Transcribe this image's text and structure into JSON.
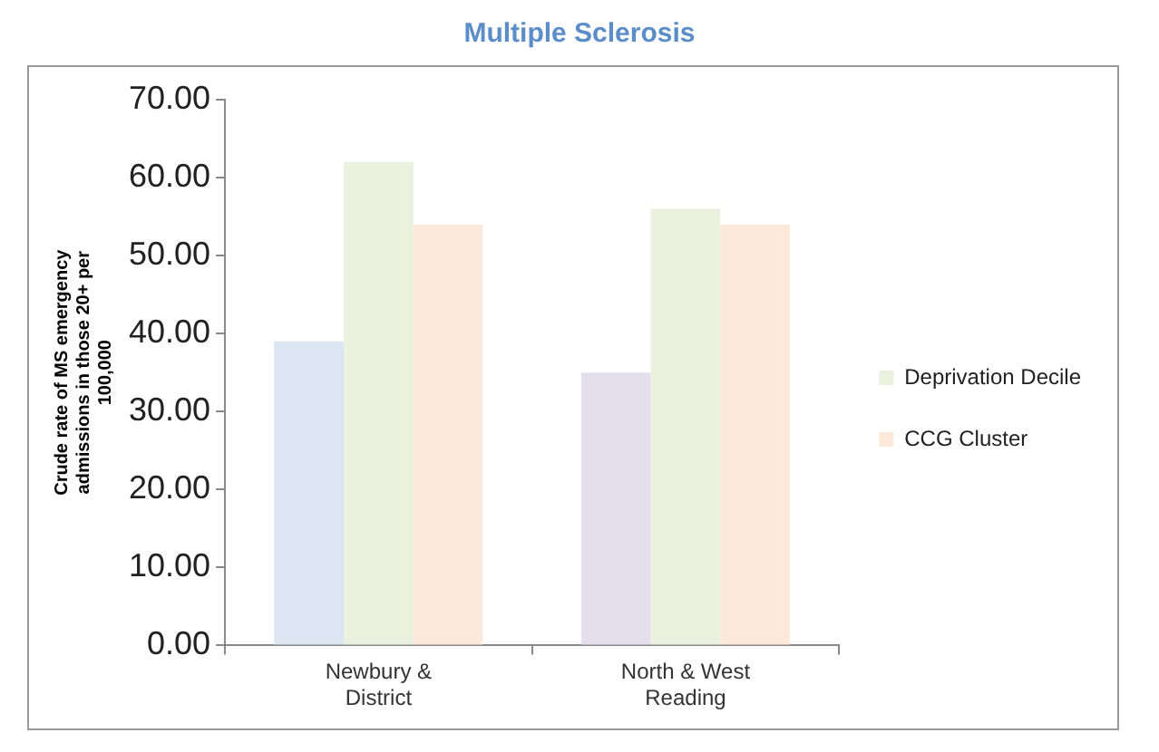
{
  "chart_data": {
    "type": "bar",
    "title": "Multiple Sclerosis",
    "ylabel": "Crude rate of MS emergency admissions in those 20+ per 100,000",
    "categories": [
      "Newbury & District",
      "North & West Reading"
    ],
    "series": [
      {
        "colors": [
          "#dce6f2",
          "#e4dfec"
        ],
        "values": [
          39,
          35
        ]
      },
      {
        "name": "Deprivation Decile",
        "color": "#ebf1de",
        "values": [
          62,
          56
        ]
      },
      {
        "name": "CCG Cluster",
        "color": "#fde9d9",
        "values": [
          54,
          54
        ]
      }
    ],
    "ylim": [
      0,
      70
    ],
    "yticks": [
      {
        "value": 0,
        "label": "0.00"
      },
      {
        "value": 10,
        "label": "10.00"
      },
      {
        "value": 20,
        "label": "20.00"
      },
      {
        "value": 30,
        "label": "30.00"
      },
      {
        "value": 40,
        "label": "40.00"
      },
      {
        "value": 50,
        "label": "50.00"
      },
      {
        "value": 60,
        "label": "60.00"
      },
      {
        "value": 70,
        "label": "70.00"
      }
    ],
    "grid": false,
    "legend": "right"
  }
}
